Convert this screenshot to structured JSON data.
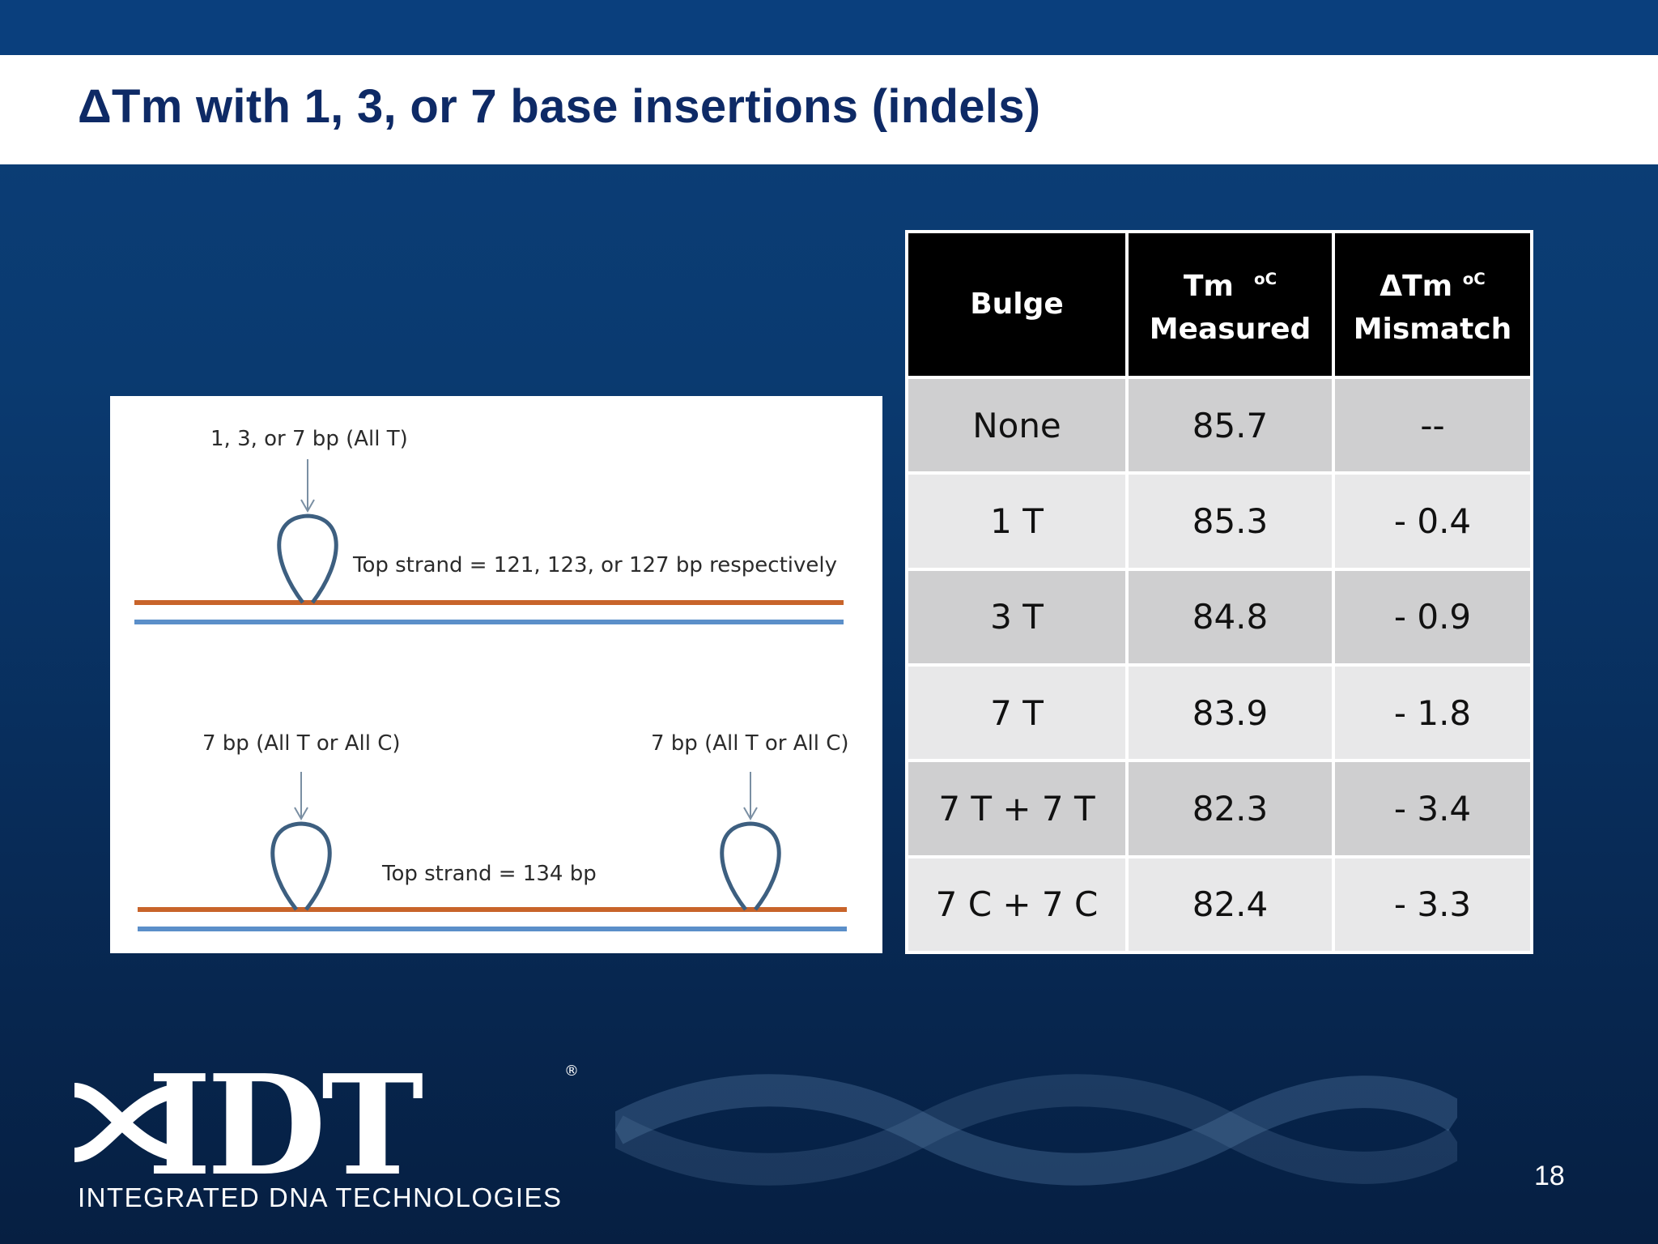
{
  "slide": {
    "title": "ΔTm with 1, 3, or 7 base insertions (indels)",
    "page_number": "18"
  },
  "diagram": {
    "top_label": "1, 3, or 7 bp (All T)",
    "top_strand": "Top strand = 121, 123, or 127 bp respectively",
    "left_label": "7 bp (All T or All C)",
    "right_label": "7 bp (All T or All C)",
    "bottom_strand": "Top strand = 134 bp"
  },
  "table": {
    "headers": {
      "col1": "Bulge",
      "col2_line1": "Tm",
      "col2_unit": "oC",
      "col2_line2": "Measured",
      "col3_line1": "ΔTm",
      "col3_unit": "oC",
      "col3_line2": "Mismatch"
    },
    "rows": [
      [
        "None",
        "85.7",
        "--"
      ],
      [
        "1 T",
        "85.3",
        "- 0.4"
      ],
      [
        "3 T",
        "84.8",
        "- 0.9"
      ],
      [
        "7 T",
        "83.9",
        "- 1.8"
      ],
      [
        "7 T + 7 T",
        "82.3",
        "- 3.4"
      ],
      [
        "7 C + 7 C",
        "82.4",
        "- 3.3"
      ]
    ]
  },
  "logo": {
    "wordmark": "IDT",
    "registered": "®",
    "tagline": "INTEGRATED DNA TECHNOLOGIES"
  },
  "colors": {
    "header_bar": "#0a3f7d",
    "title_text": "#0e2a66",
    "top_strand_line": "#c8642a",
    "bottom_strand_line": "#5b8fc9",
    "loop_stroke": "#3d5f80"
  }
}
